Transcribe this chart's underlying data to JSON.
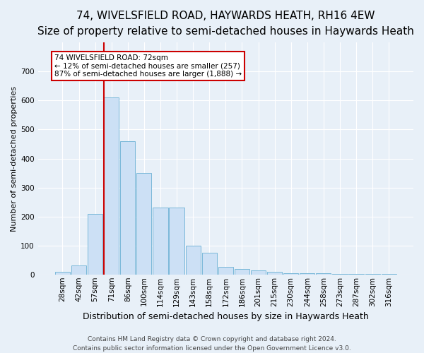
{
  "title": "74, WIVELSFIELD ROAD, HAYWARDS HEATH, RH16 4EW",
  "subtitle": "Size of property relative to semi-detached houses in Haywards Heath",
  "xlabel": "Distribution of semi-detached houses by size in Haywards Heath",
  "ylabel": "Number of semi-detached properties",
  "bar_labels": [
    "28sqm",
    "42sqm",
    "57sqm",
    "71sqm",
    "86sqm",
    "100sqm",
    "114sqm",
    "129sqm",
    "143sqm",
    "158sqm",
    "172sqm",
    "186sqm",
    "201sqm",
    "215sqm",
    "230sqm",
    "244sqm",
    "258sqm",
    "273sqm",
    "287sqm",
    "302sqm",
    "316sqm"
  ],
  "bar_values": [
    8,
    30,
    210,
    610,
    460,
    350,
    230,
    230,
    100,
    75,
    25,
    20,
    15,
    10,
    5,
    5,
    5,
    3,
    3,
    3,
    3
  ],
  "bar_color": "#cce0f5",
  "bar_edgecolor": "#7ab8d9",
  "property_index": 3,
  "vline_color": "#cc0000",
  "annotation_text": "74 WIVELSFIELD ROAD: 72sqm\n← 12% of semi-detached houses are smaller (257)\n87% of semi-detached houses are larger (1,888) →",
  "annotation_box_facecolor": "#ffffff",
  "annotation_box_edgecolor": "#cc0000",
  "ylim": [
    0,
    800
  ],
  "yticks": [
    0,
    100,
    200,
    300,
    400,
    500,
    600,
    700
  ],
  "bg_color": "#e8f0f8",
  "grid_color": "#ffffff",
  "footer": "Contains HM Land Registry data © Crown copyright and database right 2024.\nContains public sector information licensed under the Open Government Licence v3.0.",
  "title_fontsize": 11,
  "subtitle_fontsize": 9.5,
  "xlabel_fontsize": 9,
  "ylabel_fontsize": 8,
  "tick_fontsize": 7.5,
  "annot_fontsize": 7.5,
  "footer_fontsize": 6.5
}
